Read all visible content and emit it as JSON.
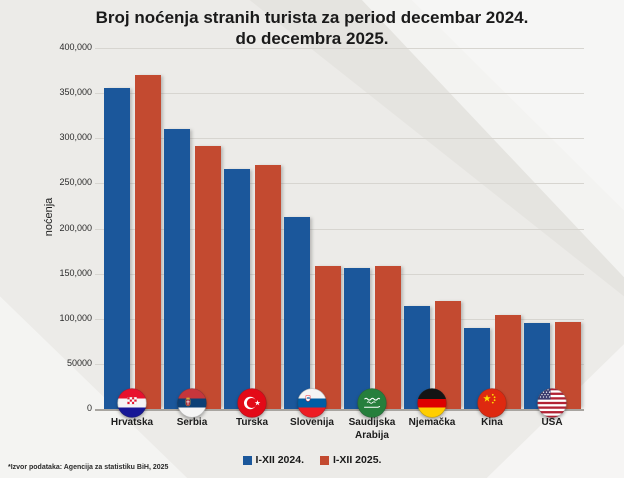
{
  "title_line1": "Broj noćenja stranih turista za period decembar 2024.",
  "title_line2": "do decembra 2025.",
  "source_note": "*Izvor podataka: Agencija za statistiku BiH, 2025",
  "colors": {
    "series_2024": "#1b579b",
    "series_2025": "#c34a30",
    "background": "#ecebe8"
  },
  "chart_data": {
    "type": "bar",
    "title": "Broj noćenja stranih turista za period decembar 2024. do decembra 2025.",
    "xlabel": "",
    "ylabel": "noćenja",
    "ylim": [
      0,
      400000
    ],
    "grid": true,
    "legend_position": "bottom",
    "ytick_labels": [
      "400,000",
      "350,000",
      "300,000",
      "250,000",
      "200,000",
      "150,000",
      "100,000",
      "50000",
      "0"
    ],
    "categories": [
      "Hrvatska",
      "Serbia",
      "Turska",
      "Slovenija",
      "Saudijska Arabija",
      "Njemačka",
      "Kina",
      "USA"
    ],
    "category_flags": [
      "croatia-flag-icon",
      "serbia-flag-icon",
      "turkey-flag-icon",
      "slovenia-flag-icon",
      "saudi-arabia-flag-icon",
      "germany-flag-icon",
      "china-flag-icon",
      "usa-flag-icon"
    ],
    "series": [
      {
        "name": "I-XII 2024.",
        "color": "#1b579b",
        "values": [
          356000,
          310000,
          266000,
          213000,
          156000,
          114000,
          90000,
          95000
        ]
      },
      {
        "name": "I-XII 2025.",
        "color": "#c34a30",
        "values": [
          370000,
          292000,
          270000,
          159000,
          158000,
          120000,
          104000,
          97000
        ]
      }
    ]
  }
}
